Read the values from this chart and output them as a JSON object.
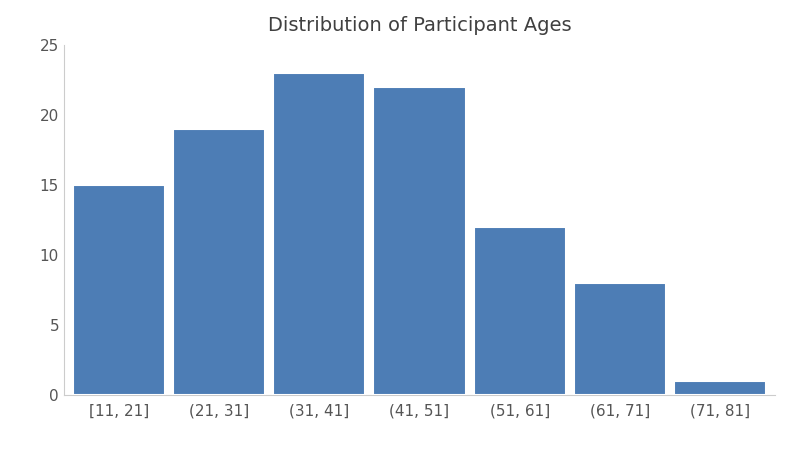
{
  "title": "Distribution of Participant Ages",
  "categories": [
    "[11, 21]",
    "(21, 31]",
    "(31, 41]",
    "(41, 51]",
    "(51, 61]",
    "(61, 71]",
    "(71, 81]"
  ],
  "values": [
    15,
    19,
    23,
    22,
    12,
    8,
    1
  ],
  "bar_color": "#4d7db5",
  "ylim": [
    0,
    25
  ],
  "yticks": [
    0,
    5,
    10,
    15,
    20,
    25
  ],
  "title_fontsize": 14,
  "tick_fontsize": 11,
  "background_color": "#ffffff",
  "bar_edge_color": "#ffffff",
  "bar_linewidth": 1.5,
  "bar_width": 0.92
}
